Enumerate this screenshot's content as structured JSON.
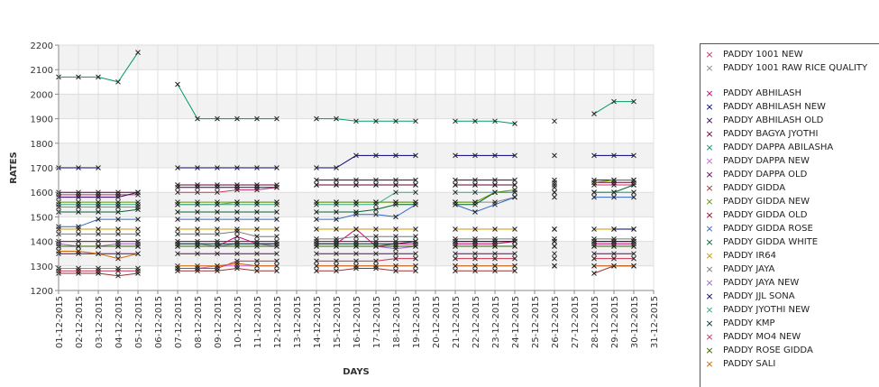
{
  "chart_data": {
    "type": "line",
    "title": "",
    "xlabel": "DAYS",
    "ylabel": "RATES",
    "ylim": [
      1200,
      2200
    ],
    "yticks": [
      "1200",
      "1300",
      "1400",
      "1500",
      "1600",
      "1700",
      "1800",
      "1900",
      "2000",
      "2100",
      "2200"
    ],
    "categories": [
      "01-12-2015",
      "02-12-2015",
      "03-12-2015",
      "04-12-2015",
      "05-12-2015",
      "06-12-2015",
      "07-12-2015",
      "08-12-2015",
      "09-12-2015",
      "10-12-2015",
      "11-12-2015",
      "12-12-2015",
      "13-12-2015",
      "14-12-2015",
      "15-12-2015",
      "16-12-2015",
      "17-12-2015",
      "18-12-2015",
      "19-12-2015",
      "20-12-2015",
      "21-12-2015",
      "22-12-2015",
      "23-12-2015",
      "24-12-2015",
      "25-12-2015",
      "26-12-2015",
      "27-12-2015",
      "28-12-2015",
      "29-12-2015",
      "30-12-2015",
      "31-12-2015"
    ],
    "grid": true,
    "legend_position": "right",
    "series": [
      {
        "name": "PADDY 1001 NEW",
        "color": "#cc3366",
        "values": [
          1590,
          1590,
          1590,
          1590,
          1590,
          null,
          1600,
          1600,
          1600,
          1610,
          1610,
          1620,
          null,
          1630,
          1630,
          1630,
          1630,
          1630,
          1630,
          null,
          1630,
          1630,
          1630,
          1630,
          null,
          1630,
          null,
          1630,
          1630,
          1630,
          null
        ]
      },
      {
        "name": "PADDY 1001 RAW RICE QUALITY",
        "color": "#888888",
        "values": [
          1540,
          1540,
          1540,
          1540,
          1540,
          null,
          1550,
          1550,
          1550,
          1560,
          1560,
          1560,
          null,
          1560,
          1560,
          1560,
          1560,
          1560,
          1560,
          null,
          1560,
          1560,
          1560,
          1580,
          null,
          1600,
          null,
          1600,
          1600,
          1600,
          null
        ]
      },
      {
        "name": "PADDY ABHILASH",
        "color": "#cc0077",
        "values": [
          1380,
          1380,
          1380,
          1380,
          1380,
          null,
          1380,
          1380,
          1380,
          1420,
          1390,
          1390,
          null,
          1390,
          1390,
          1450,
          1380,
          1390,
          1390,
          null,
          1390,
          1390,
          1390,
          1400,
          null,
          1450,
          null,
          1390,
          1390,
          1390,
          null
        ]
      },
      {
        "name": "PADDY ABHILASH NEW",
        "color": "#000077",
        "values": [
          1700,
          1700,
          1700,
          null,
          1600,
          null,
          1700,
          1700,
          1700,
          1700,
          1700,
          1700,
          null,
          1700,
          1700,
          1750,
          1750,
          1750,
          1750,
          null,
          1750,
          1750,
          1750,
          1750,
          null,
          1750,
          null,
          1750,
          1750,
          1750,
          null
        ]
      },
      {
        "name": "PADDY ABHILASH OLD",
        "color": "#330066",
        "values": [
          1580,
          1580,
          1580,
          1580,
          1600,
          null,
          1620,
          1620,
          1620,
          1620,
          1620,
          1620,
          null,
          1650,
          1650,
          1650,
          1650,
          1650,
          1650,
          null,
          1650,
          1650,
          1650,
          1650,
          null,
          1650,
          null,
          1650,
          1650,
          1650,
          null
        ]
      },
      {
        "name": "PADDY BAGYA JYOTHI",
        "color": "#660033",
        "values": [
          1600,
          1600,
          1600,
          1600,
          1600,
          null,
          1630,
          1630,
          1630,
          1630,
          1630,
          1630,
          null,
          1630,
          1630,
          1630,
          1630,
          1630,
          1630,
          null,
          1630,
          1630,
          1630,
          1630,
          null,
          1640,
          null,
          1640,
          1640,
          1640,
          null
        ]
      },
      {
        "name": "PADDY DAPPA ABILASHA",
        "color": "#009966",
        "values": [
          2070,
          2070,
          2070,
          2050,
          2170,
          null,
          2040,
          1900,
          1900,
          1900,
          1900,
          1900,
          null,
          1900,
          1900,
          1890,
          1890,
          1890,
          1890,
          null,
          1890,
          1890,
          1890,
          1880,
          null,
          1890,
          null,
          1920,
          1970,
          1970,
          null
        ]
      },
      {
        "name": "PADDY DAPPA NEW",
        "color": "#cc66cc",
        "values": [
          1290,
          1290,
          1290,
          1290,
          1290,
          null,
          1290,
          1290,
          1300,
          1300,
          1300,
          1300,
          null,
          1300,
          1300,
          1300,
          1300,
          1300,
          1300,
          null,
          1300,
          1300,
          1300,
          1300,
          null,
          1300,
          null,
          1300,
          1300,
          1300,
          null
        ]
      },
      {
        "name": "PADDY DAPPA OLD",
        "color": "#660066",
        "values": [
          1350,
          1350,
          1350,
          1350,
          1350,
          null,
          1350,
          1350,
          1350,
          1350,
          1350,
          1350,
          null,
          1350,
          1350,
          1350,
          1350,
          1350,
          1350,
          null,
          1350,
          1350,
          1350,
          1350,
          null,
          1350,
          null,
          1350,
          1350,
          1350,
          null
        ]
      },
      {
        "name": "PADDY GIDDA",
        "color": "#993333",
        "values": [
          1270,
          1270,
          1270,
          1260,
          1270,
          null,
          1280,
          1280,
          1280,
          1290,
          1280,
          1280,
          null,
          1280,
          1280,
          1290,
          1290,
          1280,
          1280,
          null,
          1280,
          1280,
          1280,
          1280,
          null,
          1300,
          null,
          1270,
          1300,
          1300,
          null
        ]
      },
      {
        "name": "PADDY GIDDA NEW",
        "color": "#669900",
        "values": [
          1560,
          1560,
          1560,
          1560,
          1560,
          null,
          1560,
          1560,
          1560,
          1560,
          1560,
          1560,
          null,
          1560,
          1560,
          1560,
          1560,
          1560,
          1560,
          null,
          1560,
          1560,
          1600,
          1610,
          null,
          1620,
          null,
          1640,
          1650,
          1650,
          null
        ]
      },
      {
        "name": "PADDY GIDDA OLD",
        "color": "#990033",
        "values": [
          1400,
          1400,
          1400,
          1400,
          1400,
          null,
          1400,
          1400,
          1400,
          1400,
          1400,
          1400,
          null,
          1400,
          1400,
          1400,
          1400,
          1400,
          1400,
          null,
          1400,
          1400,
          1400,
          1400,
          null,
          1400,
          null,
          1400,
          1400,
          1400,
          null
        ]
      },
      {
        "name": "PADDY GIDDA ROSE",
        "color": "#3366cc",
        "values": [
          1460,
          1460,
          1490,
          1490,
          1490,
          null,
          1490,
          1490,
          1490,
          1490,
          1490,
          1490,
          null,
          1490,
          1490,
          1510,
          1510,
          1500,
          1550,
          null,
          1550,
          1520,
          1550,
          1580,
          null,
          1580,
          null,
          1580,
          1580,
          1580,
          null
        ]
      },
      {
        "name": "PADDY GIDDA WHITE",
        "color": "#006633",
        "values": [
          1520,
          1520,
          1520,
          1520,
          1530,
          null,
          1520,
          1520,
          1520,
          1520,
          1520,
          1520,
          null,
          1520,
          1520,
          1520,
          1530,
          1550,
          1550,
          null,
          1550,
          1550,
          1600,
          1600,
          null,
          1600,
          null,
          1600,
          1600,
          1630,
          null
        ]
      },
      {
        "name": "PADDY IR64",
        "color": "#cc9900",
        "values": [
          1450,
          1450,
          1450,
          1450,
          1450,
          null,
          1450,
          1450,
          1450,
          1450,
          1450,
          1450,
          null,
          1450,
          1450,
          1450,
          1450,
          1450,
          1450,
          null,
          1450,
          1450,
          1450,
          1450,
          null,
          1450,
          null,
          1450,
          1450,
          1450,
          null
        ]
      },
      {
        "name": "PADDY JAYA",
        "color": "#777777",
        "values": [
          1430,
          1430,
          1430,
          1430,
          1430,
          null,
          1430,
          1430,
          1430,
          1440,
          1420,
          1420,
          null,
          1410,
          1410,
          1420,
          1420,
          1420,
          1420,
          null,
          1410,
          1410,
          1410,
          1410,
          null,
          1410,
          null,
          1410,
          1410,
          1410,
          null
        ]
      },
      {
        "name": "PADDY JAYA NEW",
        "color": "#9966cc",
        "values": [
          1390,
          1380,
          1380,
          1390,
          1390,
          null,
          1390,
          1390,
          1380,
          1390,
          1390,
          1380,
          null,
          1380,
          1380,
          1380,
          1380,
          1370,
          1380,
          null,
          1380,
          1380,
          1380,
          1380,
          null,
          1380,
          null,
          1380,
          1380,
          1380,
          null
        ]
      },
      {
        "name": "PADDY JJL SONA",
        "color": "#000066",
        "values": [
          null,
          null,
          null,
          null,
          null,
          null,
          null,
          null,
          null,
          null,
          null,
          null,
          null,
          null,
          null,
          null,
          null,
          null,
          null,
          null,
          null,
          null,
          null,
          null,
          null,
          null,
          null,
          null,
          1450,
          1450,
          null
        ]
      },
      {
        "name": "PADDY JYOTHI NEW",
        "color": "#33aa88",
        "values": [
          1550,
          1550,
          1550,
          1550,
          1550,
          null,
          1550,
          1550,
          1550,
          1550,
          1550,
          1550,
          null,
          1550,
          1550,
          1550,
          1550,
          1600,
          1600,
          null,
          1600,
          1600,
          1600,
          1600,
          null,
          1600,
          null,
          1600,
          1600,
          1600,
          null
        ]
      },
      {
        "name": "PADDY KMP",
        "color": "#003333",
        "values": [
          1380,
          1380,
          1380,
          1380,
          1380,
          null,
          1390,
          1390,
          1390,
          1390,
          1390,
          1390,
          null,
          1390,
          1390,
          1390,
          1390,
          1390,
          1400,
          null,
          1400,
          1400,
          1400,
          1400,
          null,
          1400,
          null,
          1400,
          1400,
          1400,
          null
        ]
      },
      {
        "name": "PADDY MO4 NEW",
        "color": "#cc3355",
        "values": [
          1280,
          1280,
          1280,
          1280,
          1280,
          null,
          1290,
          1290,
          1290,
          1320,
          1320,
          1320,
          null,
          1320,
          1320,
          1320,
          1320,
          1330,
          1330,
          null,
          1330,
          1330,
          1330,
          1330,
          null,
          1330,
          null,
          1330,
          1330,
          1330,
          null
        ]
      },
      {
        "name": "PADDY ROSE GIDDA",
        "color": "#336600",
        "values": [
          1380,
          1380,
          1380,
          1380,
          1380,
          null,
          1380,
          1380,
          1380,
          1380,
          1380,
          1380,
          null,
          1380,
          1380,
          1380,
          1380,
          1380,
          1380,
          null,
          1380,
          1380,
          1380,
          1380,
          null,
          1380,
          null,
          1380,
          1380,
          1380,
          null
        ]
      },
      {
        "name": "PADDY SALI",
        "color": "#cc6600",
        "values": [
          1360,
          1360,
          1350,
          1330,
          1350,
          null,
          1300,
          1300,
          1300,
          1310,
          1300,
          1300,
          null,
          1300,
          1300,
          1300,
          1300,
          1300,
          1300,
          null,
          1300,
          1300,
          1300,
          1300,
          null,
          1300,
          null,
          1300,
          1300,
          1300,
          null
        ]
      }
    ]
  }
}
